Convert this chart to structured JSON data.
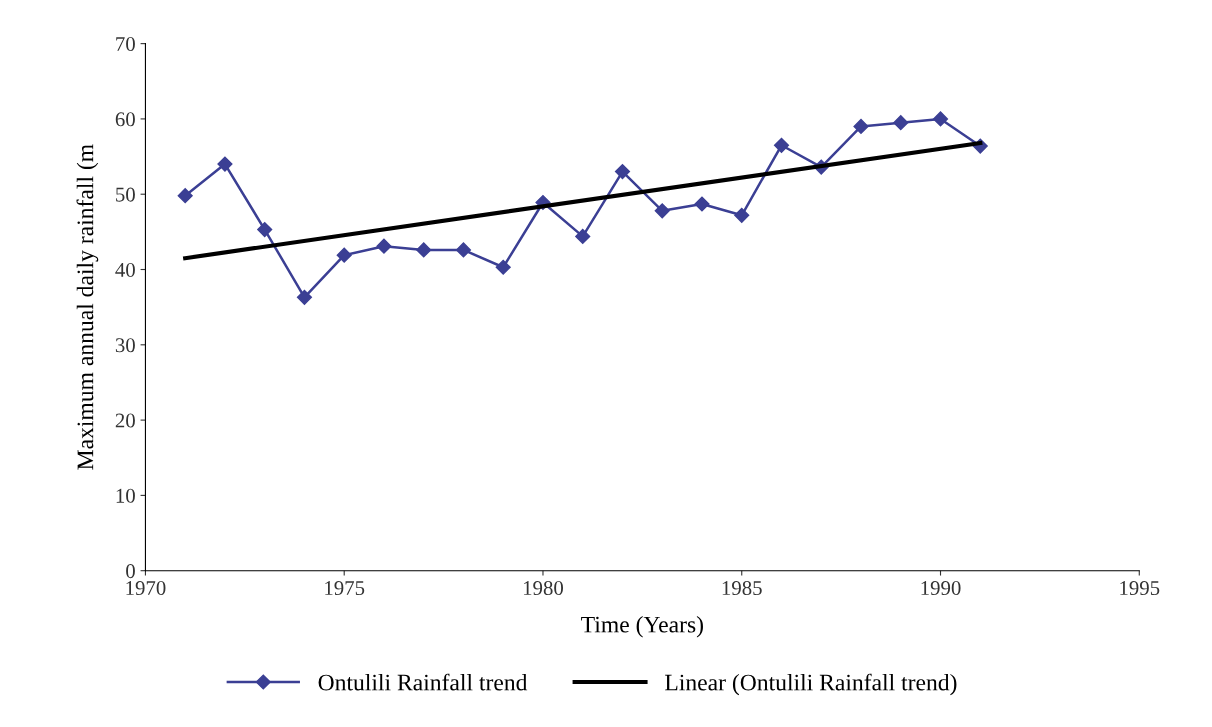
{
  "chart_data": {
    "type": "line",
    "xlabel": "Time (Years)",
    "ylabel": "Maximum annual daily rainfall (m",
    "xlim": [
      1970,
      1995
    ],
    "xticks": [
      1970,
      1975,
      1980,
      1985,
      1990,
      1995
    ],
    "ylim": [
      0,
      70
    ],
    "yticks": [
      0,
      10,
      20,
      30,
      40,
      50,
      60,
      70
    ],
    "grid": false,
    "legend": "bottom",
    "series": [
      {
        "name": "Ontulili Rainfall trend",
        "color": "#3b3f94",
        "marker": "diamond",
        "x": [
          1971,
          1972,
          1973,
          1974,
          1975,
          1976,
          1977,
          1978,
          1979,
          1980,
          1981,
          1982,
          1983,
          1984,
          1985,
          1986,
          1987,
          1988,
          1989,
          1990,
          1991
        ],
        "values": [
          49.8,
          54,
          45.3,
          36.3,
          41.9,
          43.1,
          42.6,
          42.6,
          40.3,
          48.9,
          44.4,
          53,
          47.8,
          48.7,
          47.2,
          56.5,
          53.6,
          59,
          59.5,
          60,
          56.4
        ]
      },
      {
        "name": "Linear (Ontulili Rainfall trend)",
        "color": "#000000",
        "marker": "none",
        "x": [
          1971,
          1991
        ],
        "values": [
          41.5,
          56.8
        ]
      }
    ]
  }
}
